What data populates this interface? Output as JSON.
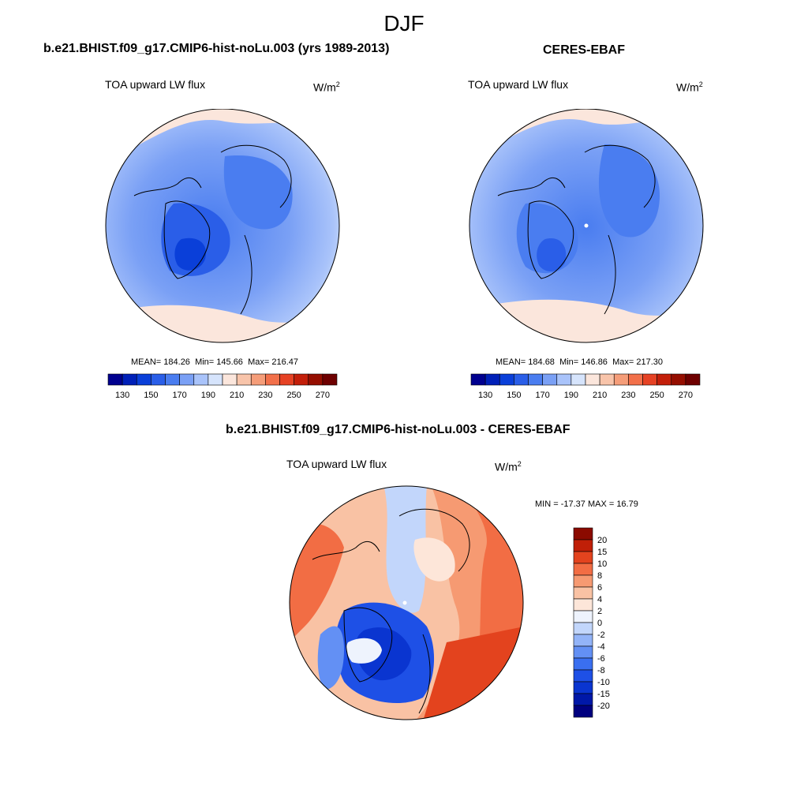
{
  "figure": {
    "season": "DJF"
  },
  "colors": {
    "ocean_bg": "#c9dcff",
    "coast": "#000000",
    "level_palette": [
      "#00008f",
      "#0020b8",
      "#0a3fd9",
      "#2a5ee8",
      "#4a7df0",
      "#7aa0f5",
      "#a9c3fa",
      "#d6e4fc",
      "#fbe6dc",
      "#f8c4aa",
      "#f59d79",
      "#f2704a",
      "#e64224",
      "#c31f0a",
      "#950e00",
      "#6e0000"
    ],
    "diff_palette": [
      "#00007f",
      "#0018a8",
      "#0a35d0",
      "#1e50e6",
      "#3a6ff0",
      "#6390f4",
      "#93b4f8",
      "#c2d6fb",
      "#eef3fd",
      "#fde6d9",
      "#f9c2a4",
      "#f69a72",
      "#f26d44",
      "#e3431e",
      "#c01f08",
      "#8b0a00"
    ]
  },
  "panels": [
    {
      "id": "model",
      "title": "b.e21.BHIST.f09_g17.CMIP6-hist-noLu.003 (yrs 1989-2013)",
      "variable": "TOA upward LW flux",
      "units": "W/m",
      "units_exp": "2",
      "stats": {
        "mean_label": "MEAN=",
        "mean": "184.26",
        "min_label": "Min=",
        "min": "145.66",
        "max_label": "Max=",
        "max": "216.47"
      },
      "colorbar_ticks": [
        "130",
        "150",
        "170",
        "190",
        "210",
        "230",
        "250",
        "270"
      ]
    },
    {
      "id": "obs",
      "title": "CERES-EBAF",
      "variable": "TOA upward LW flux",
      "units": "W/m",
      "units_exp": "2",
      "stats": {
        "mean_label": "MEAN=",
        "mean": "184.68",
        "min_label": "Min=",
        "min": "146.86",
        "max_label": "Max=",
        "max": "217.30"
      },
      "colorbar_ticks": [
        "130",
        "150",
        "170",
        "190",
        "210",
        "230",
        "250",
        "270"
      ]
    }
  ],
  "difference": {
    "title": "b.e21.BHIST.f09_g17.CMIP6-hist-noLu.003 - CERES-EBAF",
    "variable": "TOA upward LW flux",
    "units": "W/m",
    "units_exp": "2",
    "minmax_label": "MIN = -17.37 MAX =  16.79",
    "colorbar_labels": [
      "20",
      "15",
      "10",
      "8",
      "6",
      "4",
      "2",
      "0",
      "-2",
      "-4",
      "-6",
      "-8",
      "-10",
      "-15",
      "-20"
    ]
  }
}
